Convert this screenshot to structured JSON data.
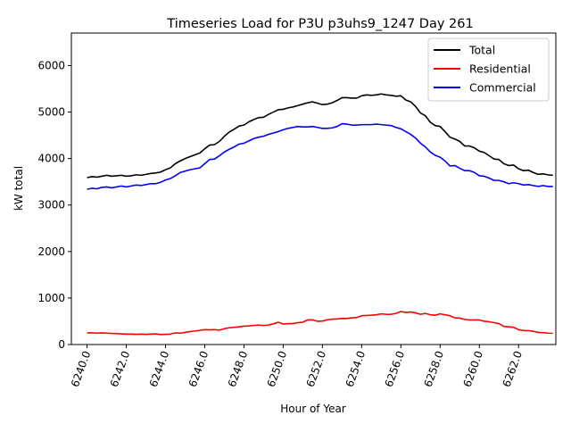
{
  "chart_data": {
    "type": "line",
    "title": "Timeseries Load for P3U p3uhs9_1247  Day 261",
    "xlabel": "Hour of Year",
    "ylabel": "kW total",
    "xlim": [
      6239.2,
      6263.9
    ],
    "ylim": [
      0,
      6700
    ],
    "x_ticks": [
      6240,
      6242,
      6244,
      6246,
      6248,
      6250,
      6252,
      6254,
      6256,
      6258,
      6260,
      6262
    ],
    "x_tick_labels": [
      "6240.0",
      "6242.0",
      "6244.0",
      "6246.0",
      "6248.0",
      "6250.0",
      "6252.0",
      "6254.0",
      "6256.0",
      "6258.0",
      "6260.0",
      "6262.0"
    ],
    "y_ticks": [
      0,
      1000,
      2000,
      3000,
      4000,
      5000,
      6000
    ],
    "y_tick_labels": [
      "0",
      "1000",
      "2000",
      "3000",
      "4000",
      "5000",
      "6000"
    ],
    "grid": false,
    "legend_position": "top-right",
    "series": [
      {
        "name": "Total",
        "color": "#000000",
        "x": [
          6240,
          6240.25,
          6240.5,
          6240.75,
          6241,
          6241.25,
          6241.5,
          6241.75,
          6242,
          6242.25,
          6242.5,
          6242.75,
          6243,
          6243.25,
          6243.5,
          6243.75,
          6244,
          6244.25,
          6244.5,
          6244.75,
          6245,
          6245.25,
          6245.5,
          6245.75,
          6246,
          6246.25,
          6246.5,
          6246.75,
          6247,
          6247.25,
          6247.5,
          6247.75,
          6248,
          6248.25,
          6248.5,
          6248.75,
          6249,
          6249.25,
          6249.5,
          6249.75,
          6250,
          6250.25,
          6250.5,
          6250.75,
          6251,
          6251.25,
          6251.5,
          6251.75,
          6252,
          6252.25,
          6252.5,
          6252.75,
          6253,
          6253.25,
          6253.5,
          6253.75,
          6254,
          6254.25,
          6254.5,
          6254.75,
          6255,
          6255.25,
          6255.5,
          6255.75,
          6256,
          6256.25,
          6256.5,
          6256.75,
          6257,
          6257.25,
          6257.5,
          6257.75,
          6258,
          6258.25,
          6258.5,
          6258.75,
          6259,
          6259.25,
          6259.5,
          6259.75,
          6260,
          6260.25,
          6260.5,
          6260.75,
          6261,
          6261.25,
          6261.5,
          6261.75,
          6262,
          6262.25,
          6262.5,
          6262.75,
          6263,
          6263.25,
          6263.5,
          6263.75
        ],
        "values": [
          3590,
          3610,
          3600,
          3620,
          3640,
          3620,
          3630,
          3640,
          3620,
          3630,
          3650,
          3640,
          3660,
          3680,
          3690,
          3710,
          3760,
          3800,
          3890,
          3950,
          4000,
          4040,
          4080,
          4120,
          4210,
          4290,
          4300,
          4370,
          4480,
          4570,
          4630,
          4700,
          4720,
          4790,
          4840,
          4880,
          4890,
          4950,
          5000,
          5050,
          5060,
          5090,
          5110,
          5140,
          5170,
          5200,
          5220,
          5190,
          5160,
          5170,
          5200,
          5250,
          5310,
          5310,
          5300,
          5300,
          5350,
          5370,
          5360,
          5370,
          5390,
          5370,
          5360,
          5340,
          5350,
          5260,
          5220,
          5120,
          4980,
          4920,
          4780,
          4710,
          4690,
          4580,
          4460,
          4420,
          4370,
          4270,
          4270,
          4230,
          4160,
          4130,
          4060,
          3990,
          3980,
          3890,
          3850,
          3860,
          3780,
          3740,
          3750,
          3700,
          3660,
          3670,
          3650,
          3640
        ]
      },
      {
        "name": "Residential",
        "color": "#ff0000",
        "x": [
          6240,
          6240.25,
          6240.5,
          6240.75,
          6241,
          6241.25,
          6241.5,
          6241.75,
          6242,
          6242.25,
          6242.5,
          6242.75,
          6243,
          6243.25,
          6243.5,
          6243.75,
          6244,
          6244.25,
          6244.5,
          6244.75,
          6245,
          6245.25,
          6245.5,
          6245.75,
          6246,
          6246.25,
          6246.5,
          6246.75,
          6247,
          6247.25,
          6247.5,
          6247.75,
          6248,
          6248.25,
          6248.5,
          6248.75,
          6249,
          6249.25,
          6249.5,
          6249.75,
          6250,
          6250.25,
          6250.5,
          6250.75,
          6251,
          6251.25,
          6251.5,
          6251.75,
          6252,
          6252.25,
          6252.5,
          6252.75,
          6253,
          6253.25,
          6253.5,
          6253.75,
          6254,
          6254.25,
          6254.5,
          6254.75,
          6255,
          6255.25,
          6255.5,
          6255.75,
          6256,
          6256.25,
          6256.5,
          6256.75,
          6257,
          6257.25,
          6257.5,
          6257.75,
          6258,
          6258.25,
          6258.5,
          6258.75,
          6259,
          6259.25,
          6259.5,
          6259.75,
          6260,
          6260.25,
          6260.5,
          6260.75,
          6261,
          6261.25,
          6261.5,
          6261.75,
          6262,
          6262.25,
          6262.5,
          6262.75,
          6263,
          6263.25,
          6263.5,
          6263.75
        ],
        "values": [
          250,
          250,
          245,
          250,
          245,
          240,
          235,
          230,
          225,
          225,
          220,
          225,
          220,
          225,
          230,
          215,
          220,
          225,
          250,
          245,
          260,
          280,
          290,
          305,
          320,
          315,
          320,
          310,
          340,
          360,
          370,
          380,
          395,
          400,
          410,
          420,
          410,
          420,
          445,
          480,
          440,
          450,
          450,
          470,
          480,
          530,
          530,
          500,
          505,
          530,
          545,
          550,
          560,
          560,
          575,
          580,
          620,
          625,
          630,
          640,
          660,
          650,
          650,
          670,
          710,
          690,
          700,
          680,
          650,
          670,
          640,
          630,
          660,
          640,
          620,
          575,
          570,
          540,
          530,
          530,
          530,
          500,
          490,
          470,
          450,
          390,
          380,
          370,
          320,
          300,
          300,
          285,
          260,
          255,
          245,
          240
        ]
      },
      {
        "name": "Commercial",
        "color": "#0000ff",
        "x": [
          6240,
          6240.25,
          6240.5,
          6240.75,
          6241,
          6241.25,
          6241.5,
          6241.75,
          6242,
          6242.25,
          6242.5,
          6242.75,
          6243,
          6243.25,
          6243.5,
          6243.75,
          6244,
          6244.25,
          6244.5,
          6244.75,
          6245,
          6245.25,
          6245.5,
          6245.75,
          6246,
          6246.25,
          6246.5,
          6246.75,
          6247,
          6247.25,
          6247.5,
          6247.75,
          6248,
          6248.25,
          6248.5,
          6248.75,
          6249,
          6249.25,
          6249.5,
          6249.75,
          6250,
          6250.25,
          6250.5,
          6250.75,
          6251,
          6251.25,
          6251.5,
          6251.75,
          6252,
          6252.25,
          6252.5,
          6252.75,
          6253,
          6253.25,
          6253.5,
          6253.75,
          6254,
          6254.25,
          6254.5,
          6254.75,
          6255,
          6255.25,
          6255.5,
          6255.75,
          6256,
          6256.25,
          6256.5,
          6256.75,
          6257,
          6257.25,
          6257.5,
          6257.75,
          6258,
          6258.25,
          6258.5,
          6258.75,
          6259,
          6259.25,
          6259.5,
          6259.75,
          6260,
          6260.25,
          6260.5,
          6260.75,
          6261,
          6261.25,
          6261.5,
          6261.75,
          6262,
          6262.25,
          6262.5,
          6262.75,
          6263,
          6263.25,
          6263.5,
          6263.75
        ],
        "values": [
          3340,
          3360,
          3350,
          3380,
          3390,
          3370,
          3390,
          3410,
          3390,
          3410,
          3430,
          3420,
          3440,
          3460,
          3460,
          3490,
          3540,
          3570,
          3630,
          3700,
          3730,
          3760,
          3780,
          3800,
          3890,
          3980,
          3990,
          4060,
          4140,
          4200,
          4250,
          4310,
          4330,
          4380,
          4430,
          4460,
          4480,
          4520,
          4550,
          4580,
          4620,
          4650,
          4670,
          4690,
          4680,
          4680,
          4690,
          4670,
          4650,
          4650,
          4660,
          4690,
          4750,
          4740,
          4720,
          4720,
          4730,
          4730,
          4730,
          4740,
          4730,
          4720,
          4710,
          4670,
          4640,
          4580,
          4520,
          4440,
          4330,
          4250,
          4140,
          4070,
          4030,
          3950,
          3840,
          3850,
          3790,
          3740,
          3740,
          3700,
          3630,
          3620,
          3580,
          3530,
          3530,
          3500,
          3460,
          3480,
          3460,
          3430,
          3440,
          3420,
          3400,
          3420,
          3400,
          3400
        ]
      }
    ]
  }
}
